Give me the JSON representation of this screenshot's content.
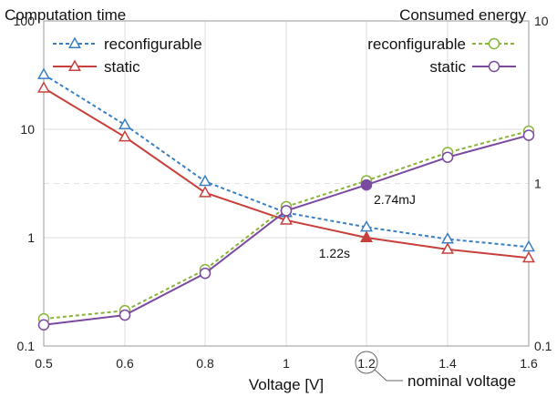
{
  "chart_data": {
    "type": "line",
    "xlabel": "Voltage [V]",
    "x": [
      0.5,
      0.6,
      0.8,
      1.0,
      1.2,
      1.4,
      1.6
    ],
    "x_tick_labels": [
      "0.5",
      "0.6",
      "0.8",
      "1",
      "1.2",
      "1.4",
      "1.6"
    ],
    "y_left": {
      "label": "Computation time",
      "scale": "log",
      "ylim": [
        0.1,
        100
      ],
      "tick_labels": [
        "0.1",
        "1",
        "10",
        "100"
      ]
    },
    "y_right": {
      "label": "Consumed energy",
      "scale": "log",
      "ylim": [
        0.1,
        10
      ],
      "tick_labels": [
        "0.1",
        "1",
        "10"
      ]
    },
    "series": [
      {
        "name": "reconfigurable",
        "axis": "left",
        "color": "#3a7fc4",
        "marker": "triangle-open",
        "dash": true,
        "values": [
          32,
          11,
          3.3,
          1.7,
          1.25,
          0.97,
          0.82
        ]
      },
      {
        "name": "static",
        "axis": "left",
        "color": "#c8403c",
        "marker": "triangle-open",
        "dash": false,
        "values": [
          24,
          8.5,
          2.6,
          1.45,
          1.0,
          0.78,
          0.65
        ]
      },
      {
        "name": "reconfigurable",
        "axis": "right",
        "color": "#8ab33a",
        "marker": "circle-open",
        "dash": true,
        "values": [
          0.147,
          0.165,
          0.295,
          0.72,
          1.04,
          1.55,
          2.1
        ]
      },
      {
        "name": "static",
        "axis": "right",
        "color": "#7a4aa0",
        "marker": "circle-open",
        "dash": false,
        "values": [
          0.135,
          0.155,
          0.28,
          0.68,
          0.98,
          1.45,
          1.98
        ]
      }
    ],
    "annotations": [
      {
        "text": "1.22s",
        "x": 1.2,
        "series": 1
      },
      {
        "text": "2.74mJ",
        "x": 1.2,
        "series": 3
      },
      {
        "text": "nominal voltage",
        "x": 1.2
      }
    ],
    "grid": true,
    "legend_placement": "top-left and top-right"
  }
}
